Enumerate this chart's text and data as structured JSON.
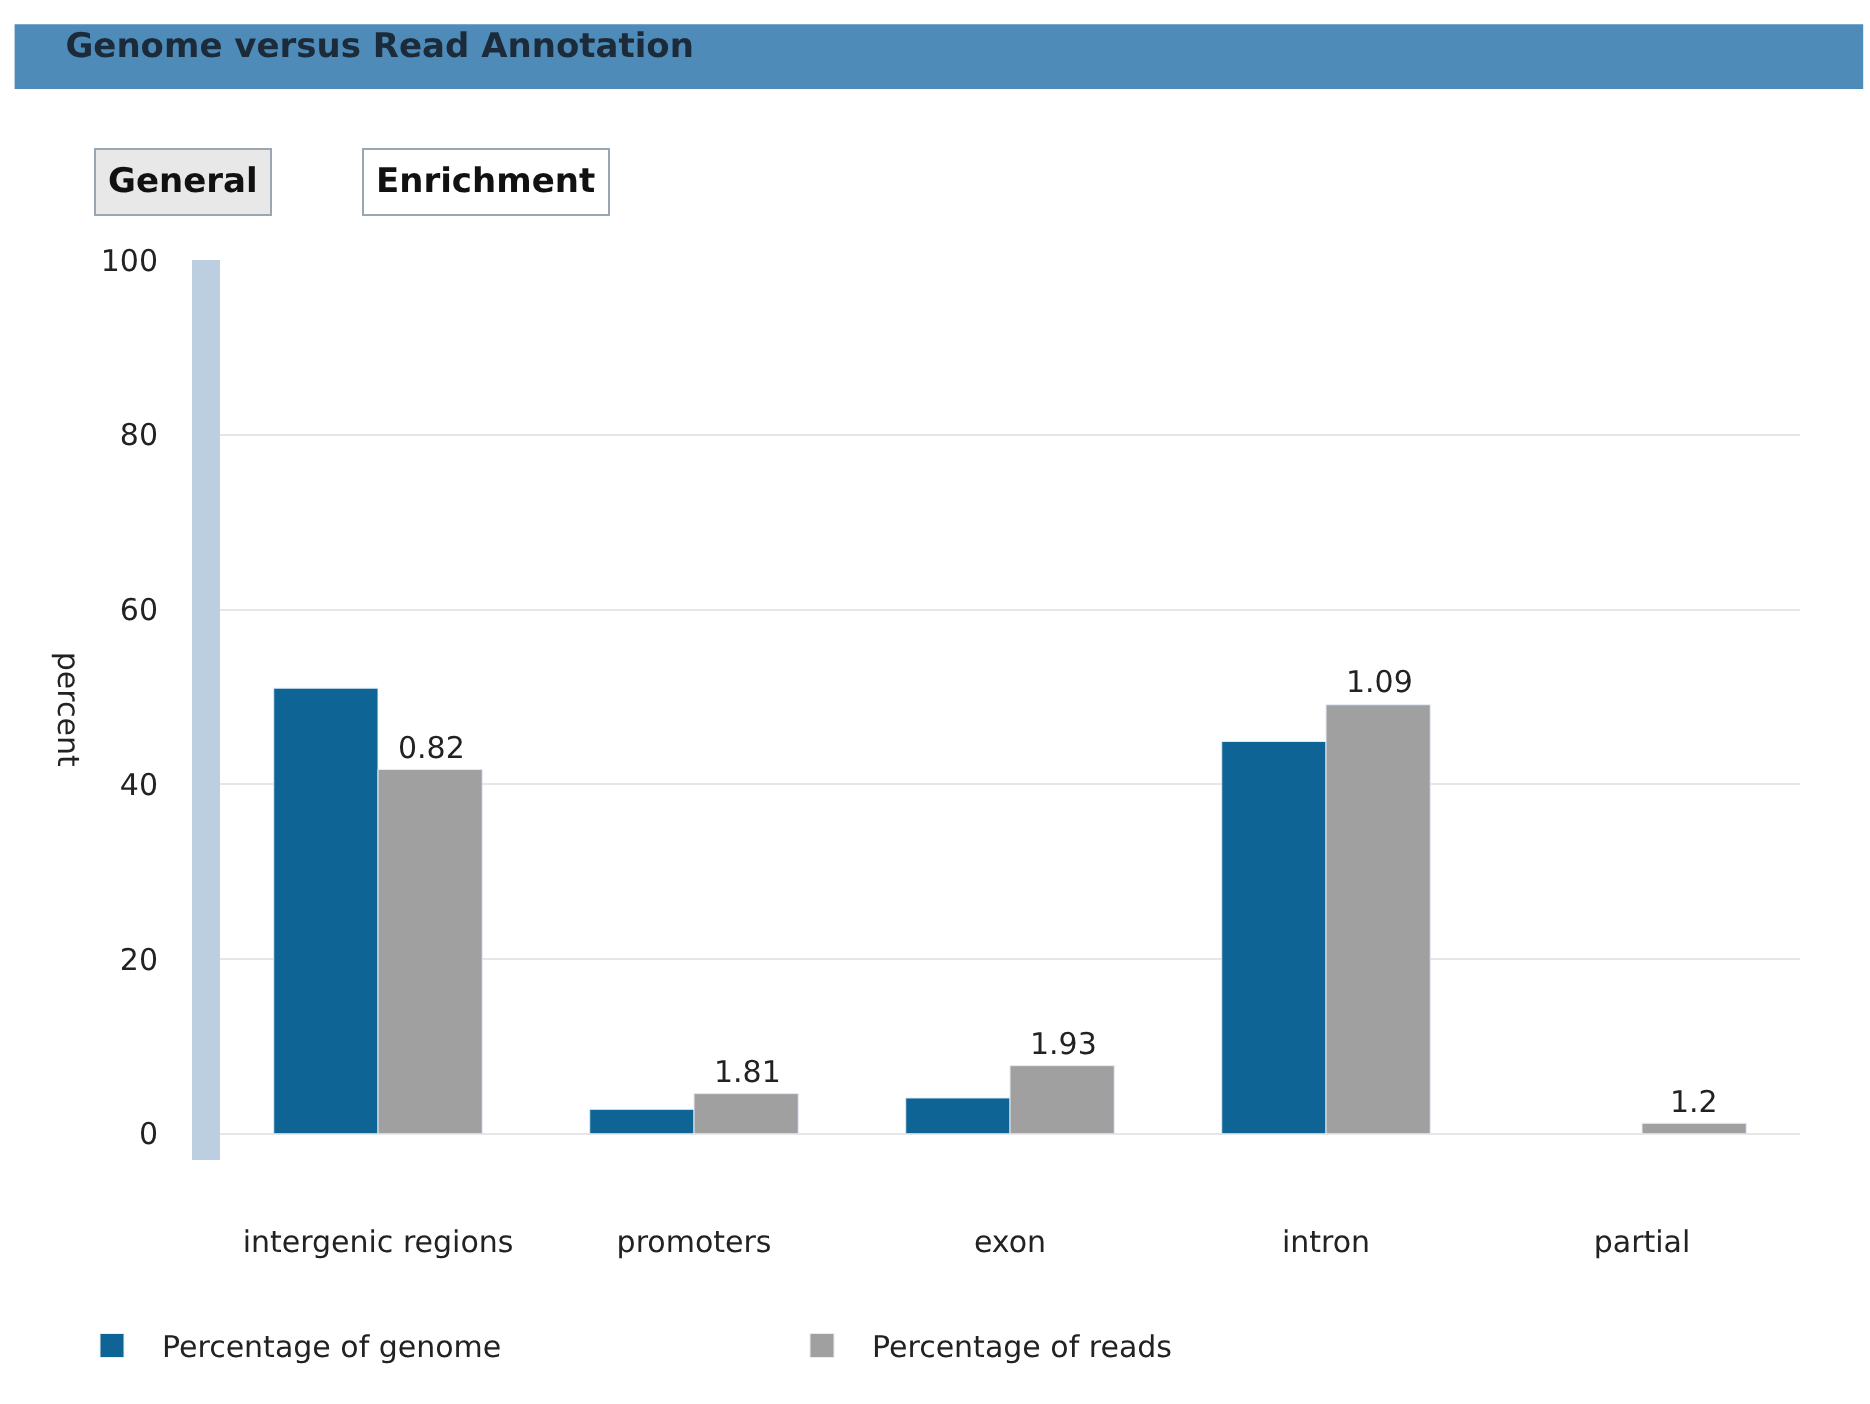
{
  "chart_data": {
    "type": "bar",
    "title": "Genome versus Read Annotation",
    "annotations": [
      "General",
      "Enrichment",
      {
        "text": "0.82",
        "x": "intergenic regions",
        "y": 41.7
      },
      {
        "text": "1.81",
        "x": "promoters",
        "y": 4.6
      },
      {
        "text": "1.93",
        "x": "exon",
        "y": 7.8
      },
      {
        "text": "1.09",
        "x": "intron",
        "y": 49.1
      },
      {
        "text": "1.2",
        "x": "partial",
        "y": 1.2
      }
    ],
    "ylabel": "percent",
    "categories": [
      "intergenic regions",
      "promoters",
      "exon",
      "intron",
      "partial"
    ],
    "series": [
      {
        "name": "Percentage of genome",
        "color": "#0f6496",
        "values": [
          51,
          2.8,
          4.1,
          44.9,
          null
        ]
      },
      {
        "name": "Percentage of reads",
        "color": "#a0a0a0",
        "values": [
          41.7,
          4.6,
          7.8,
          49.1,
          1.2
        ]
      }
    ],
    "ylim": [
      -3,
      100
    ],
    "yticks": [
      0,
      20,
      40,
      60,
      80,
      100
    ],
    "grid": "y",
    "legend": "bottom left"
  }
}
